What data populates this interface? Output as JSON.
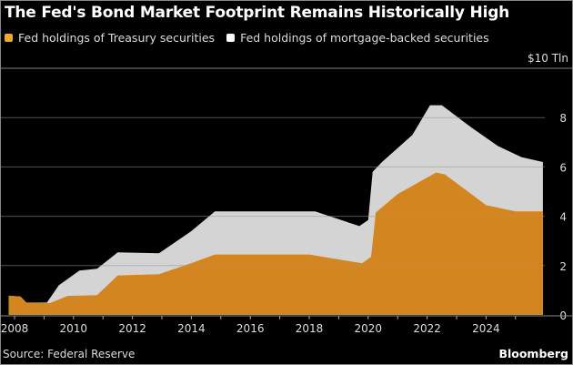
{
  "chart_data": {
    "type": "area",
    "title": "The Fed's Bond Market Footprint Remains Historically High",
    "unit_label": "$10 Tln",
    "ylim": [
      0,
      10
    ],
    "yticks": [
      0,
      2,
      4,
      6,
      8
    ],
    "xlim": [
      2007.8,
      2026.0
    ],
    "xticks": [
      2008,
      2009,
      2010,
      2011,
      2012,
      2013,
      2014,
      2015,
      2016,
      2017,
      2018,
      2019,
      2020,
      2021,
      2022,
      2023,
      2024,
      2025
    ],
    "xtick_labels": [
      "2008",
      "2010",
      "2012",
      "2014",
      "2016",
      "2018",
      "2020",
      "2022",
      "2024"
    ],
    "stacked": true,
    "series": [
      {
        "name": "Fed holdings of Treasury securities",
        "color": "#d3861f",
        "x": [
          2007.8,
          2008.2,
          2008.4,
          2009.2,
          2009.8,
          2010.8,
          2011.5,
          2012.9,
          2014.0,
          2014.8,
          2018.0,
          2019.5,
          2019.8,
          2020.1,
          2020.26,
          2021.0,
          2022.3,
          2022.6,
          2024.0,
          2025.0,
          2025.93
        ],
        "total": [
          0.78,
          0.75,
          0.5,
          0.48,
          0.77,
          0.8,
          1.6,
          1.65,
          2.1,
          2.45,
          2.45,
          2.15,
          2.1,
          2.35,
          4.15,
          4.9,
          5.77,
          5.7,
          4.45,
          4.2,
          4.2
        ]
      },
      {
        "name": "Fed holdings of mortgage-backed securities",
        "color": "#d4d4d4",
        "x": [
          2007.8,
          2008.2,
          2008.4,
          2009.1,
          2009.5,
          2010.2,
          2010.8,
          2011.5,
          2012.9,
          2014.0,
          2014.8,
          2018.2,
          2019.7,
          2020.0,
          2020.15,
          2020.47,
          2021.5,
          2022.1,
          2022.5,
          2023.5,
          2024.4,
          2025.2,
          2025.93
        ],
        "total": [
          0.78,
          0.75,
          0.5,
          0.5,
          1.2,
          1.8,
          1.87,
          2.54,
          2.5,
          3.4,
          4.2,
          4.2,
          3.6,
          3.85,
          5.8,
          6.2,
          7.3,
          8.5,
          8.5,
          7.6,
          6.85,
          6.4,
          6.2
        ]
      }
    ]
  },
  "source": "Source: Federal Reserve",
  "brand": "Bloomberg"
}
